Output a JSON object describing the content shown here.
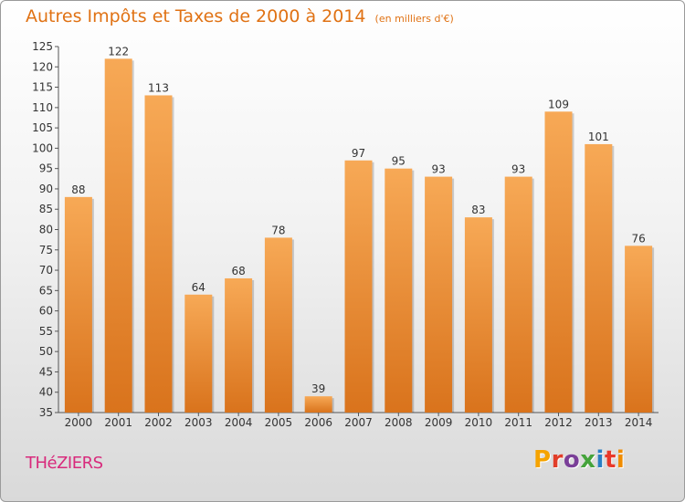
{
  "page": {
    "title": "Autres Impôts et Taxes de 2000 à 2014",
    "subtitle": "(en milliers d'€)",
    "commune": "THéZIERS",
    "logo": "Proxiti",
    "logo_colors": [
      "#f5a300",
      "#e13e2a",
      "#7a3f98",
      "#45a33b",
      "#2a7fc4",
      "#e8392b",
      "#f08c00"
    ]
  },
  "chart_data": {
    "type": "bar",
    "categories": [
      "2000",
      "2001",
      "2002",
      "2003",
      "2004",
      "2005",
      "2006",
      "2007",
      "2008",
      "2009",
      "2010",
      "2011",
      "2012",
      "2013",
      "2014"
    ],
    "values": [
      88,
      122,
      113,
      64,
      68,
      78,
      39,
      97,
      95,
      93,
      83,
      93,
      109,
      101,
      76
    ],
    "ylim": [
      35,
      125
    ],
    "yticks": [
      35,
      40,
      45,
      50,
      55,
      60,
      65,
      70,
      75,
      80,
      85,
      90,
      95,
      100,
      105,
      110,
      115,
      120,
      125
    ],
    "grid": false,
    "bar_color_light": "#f7a956",
    "bar_color_dark": "#d9731c"
  }
}
